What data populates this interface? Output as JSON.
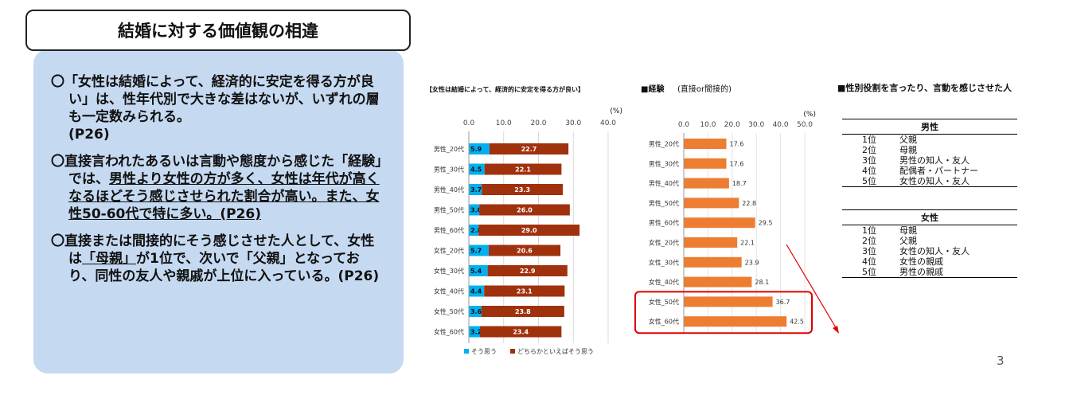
{
  "slide_title": "結婚に対する価値観の相違",
  "summary": {
    "p1_a": "〇「女性は結婚によって、経済的に安定を得る方が良い」は、性年代別で大きな差はないが、いずれの層も一定数みられる。",
    "p1_b": "(P26)",
    "p2_a": "〇直接言われたあるいは言動や態度から感じた「経験」では、",
    "p2_u1": "男性より女性の方が多く、女性は年代が高くなるほどそう感じさせられた割合が高い。また、女性50-60代で特に多い。",
    "p2_u2": "(P26)",
    "p3_a": "〇直接または間接的にそう感じさせた人として、女性は",
    "p3_u": "「母親」",
    "p3_b": "が1位で、次いで「父親」となっており、同性の友人や親戚が上位に入っている。(P26)"
  },
  "chart_data": [
    {
      "type": "bar",
      "orientation": "horizontal",
      "stacked": true,
      "title": "【女性は結婚によって、経済的に安定を得る方が良い】",
      "unit": "(%)",
      "categories": [
        "男性_20代",
        "男性_30代",
        "男性_40代",
        "男性_50代",
        "男性_60代",
        "女性_20代",
        "女性_30代",
        "女性_40代",
        "女性_50代",
        "女性_60代"
      ],
      "series": [
        {
          "name": "そう思う",
          "color": "#00b0f0",
          "values": [
            5.9,
            4.5,
            3.7,
            3.0,
            2.8,
            5.7,
            5.4,
            4.4,
            3.6,
            3.2
          ]
        },
        {
          "name": "どちらかといえばそう思う",
          "color": "#a0310d",
          "values": [
            22.7,
            22.1,
            23.3,
            26.0,
            29.0,
            20.6,
            22.9,
            23.1,
            23.8,
            23.4
          ]
        }
      ],
      "xticks": [
        "0.0",
        "10.0",
        "20.0",
        "30.0",
        "40.0"
      ],
      "xlim": [
        0,
        40
      ],
      "legend": "bottom"
    },
    {
      "type": "bar",
      "orientation": "horizontal",
      "title": "■経験",
      "subtitle": "(直接or間接的)",
      "unit": "(%)",
      "categories": [
        "男性_20代",
        "男性_30代",
        "男性_40代",
        "男性_50代",
        "男性_60代",
        "女性_20代",
        "女性_30代",
        "女性_40代",
        "女性_50代",
        "女性_60代"
      ],
      "series": [
        {
          "color": "#ed7d31",
          "values": [
            17.6,
            17.6,
            18.7,
            22.8,
            29.5,
            22.1,
            23.9,
            28.1,
            36.7,
            42.5
          ]
        }
      ],
      "xticks": [
        "0.0",
        "10.0",
        "20.0",
        "30.0",
        "40.0",
        "50.0"
      ],
      "xlim": [
        0,
        50
      ],
      "highlight": [
        "女性_50代",
        "女性_60代"
      ],
      "highlight_color": "#e00000"
    }
  ],
  "ranking": {
    "title": "■性別役割を言ったり、言動を感じさせた人",
    "male": {
      "header": "男性",
      "rows": [
        {
          "rank": "1位",
          "name": "父親"
        },
        {
          "rank": "2位",
          "name": "母親"
        },
        {
          "rank": "3位",
          "name": "男性の知人・友人"
        },
        {
          "rank": "4位",
          "name": "配偶者・パートナー"
        },
        {
          "rank": "5位",
          "name": "女性の知人・友人"
        }
      ]
    },
    "female": {
      "header": "女性",
      "rows": [
        {
          "rank": "1位",
          "name": "母親"
        },
        {
          "rank": "2位",
          "name": "父親"
        },
        {
          "rank": "3位",
          "name": "女性の知人・友人"
        },
        {
          "rank": "4位",
          "name": "女性の親戚"
        },
        {
          "rank": "5位",
          "name": "男性の親戚"
        }
      ]
    }
  },
  "page_number": "3"
}
